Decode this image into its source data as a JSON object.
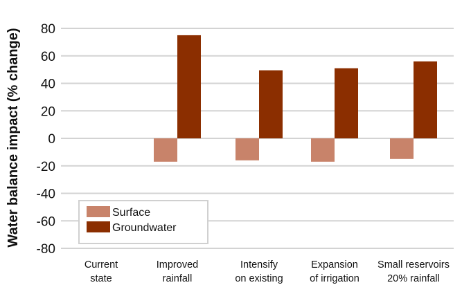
{
  "chart_data": {
    "type": "bar",
    "ylabel": "Water balance impact (% change)",
    "ylim": [
      -80,
      80
    ],
    "yticks": [
      80,
      60,
      40,
      20,
      0,
      -20,
      -40,
      -60,
      -80
    ],
    "grid": true,
    "categories": [
      [
        "Current",
        "state"
      ],
      [
        "Improved",
        "rainfall"
      ],
      [
        "Intensify",
        "on existing"
      ],
      [
        "Expansion",
        "of irrigation"
      ],
      [
        "Small reservoirs",
        "20% rainfall"
      ]
    ],
    "series": [
      {
        "name": "Surface",
        "color": "#c8836a",
        "values": [
          0,
          -17,
          -16,
          -17,
          -15
        ]
      },
      {
        "name": "Groundwater",
        "color": "#8b2e00",
        "values": [
          0,
          75,
          49.5,
          51,
          56
        ]
      }
    ],
    "legend": {
      "position": "bottom-left"
    }
  }
}
